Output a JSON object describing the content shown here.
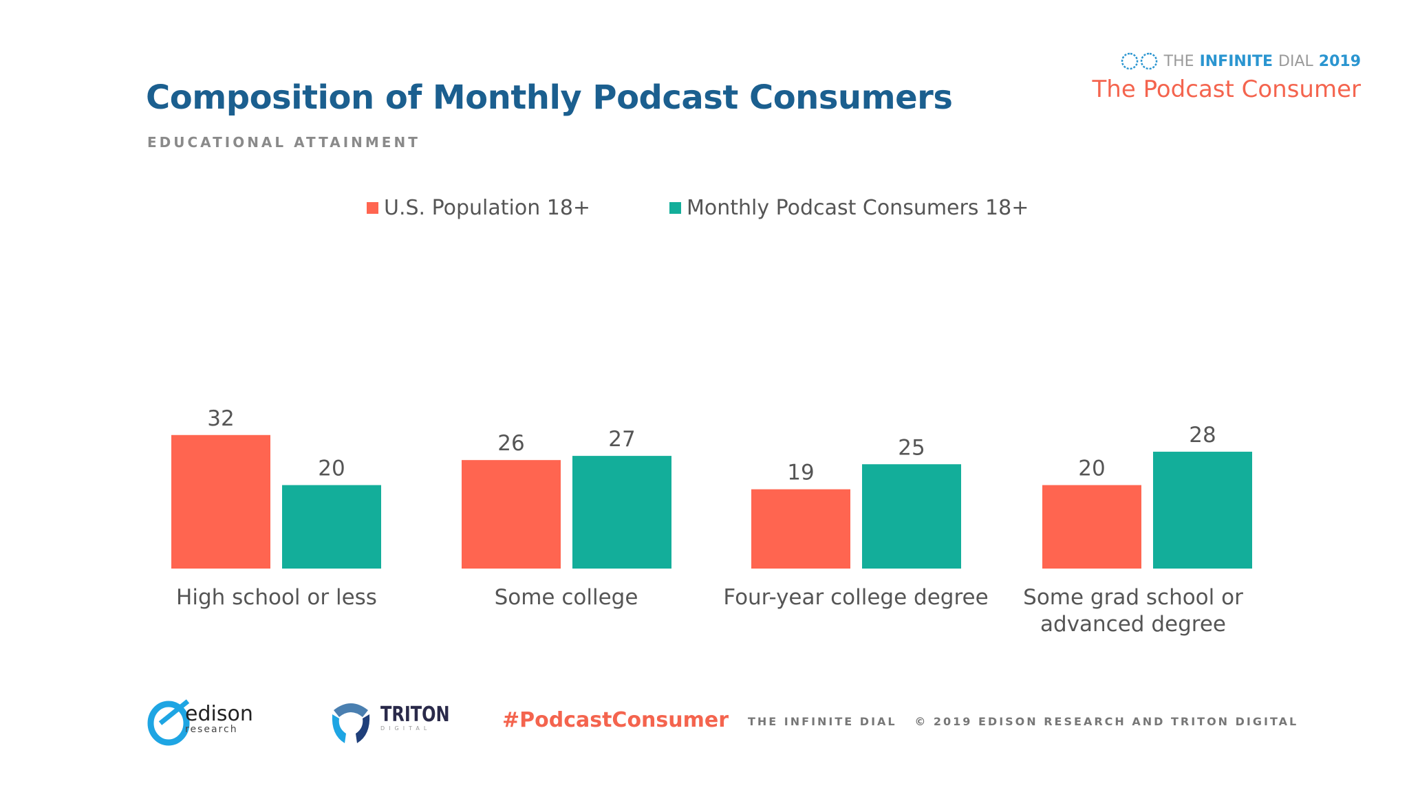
{
  "header": {
    "title": "Composition of Monthly Podcast Consumers",
    "subtitle": "EDUCATIONAL ATTAINMENT",
    "brand_line1_a": "THE",
    "brand_line1_b": "INFINITE",
    "brand_line1_c": "DIAL",
    "brand_line1_d": "2019",
    "brand_line2": "The Podcast Consumer"
  },
  "footer": {
    "edison_logo": "edison research",
    "triton_logo": "TRITON DIGITAL",
    "hashtag": "#PodcastConsumer",
    "copyright": "THE INFINITE DIAL   © 2019 EDISON RESEARCH AND TRITON DIGITAL"
  },
  "chart_data": {
    "type": "bar",
    "title": "Composition of Monthly Podcast Consumers",
    "subtitle": "EDUCATIONAL ATTAINMENT",
    "categories": [
      "High school or less",
      "Some college",
      "Four-year college degree",
      "Some grad school or advanced degree"
    ],
    "series": [
      {
        "name": "U.S. Population 18+",
        "values": [
          32,
          26,
          19,
          20
        ],
        "color": "#ff6550"
      },
      {
        "name": "Monthly Podcast Consumers 18+",
        "values": [
          20,
          27,
          25,
          28
        ],
        "color": "#13ae9a"
      }
    ],
    "legend": "top-center",
    "grid": false,
    "ylim": [
      0,
      35
    ]
  }
}
